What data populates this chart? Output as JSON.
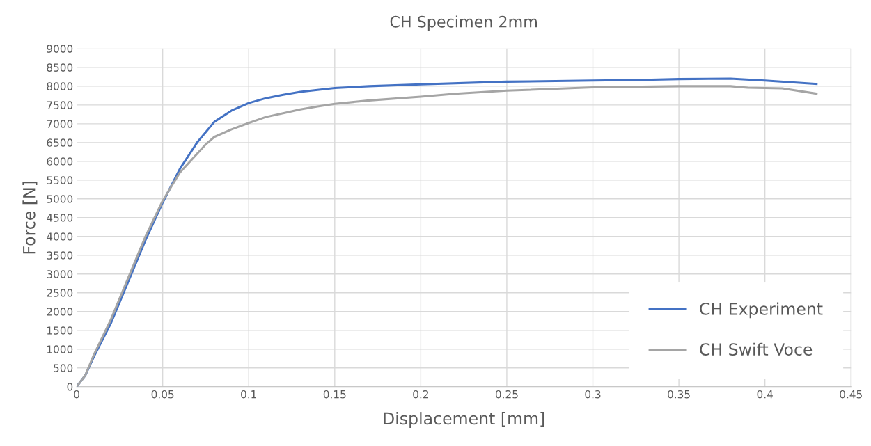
{
  "chart_data": {
    "type": "line",
    "title": "CH Specimen 2mm",
    "xlabel": "Displacement [mm]",
    "ylabel": "Force [N]",
    "xlim": [
      0,
      0.45
    ],
    "xticks": [
      {
        "value": 0,
        "label": "0"
      },
      0.05,
      0.1,
      0.15,
      0.2,
      0.25,
      0.3,
      0.35,
      0.4,
      0.45
    ],
    "ylim": [
      0,
      9000
    ],
    "yticks": [
      0,
      500,
      1000,
      1500,
      2000,
      2500,
      3000,
      3500,
      4000,
      4500,
      5000,
      5500,
      6000,
      6500,
      7000,
      7500,
      8000,
      8500,
      9000
    ],
    "grid": true,
    "legend": "bottom right",
    "marker": "none",
    "line_style": "solid",
    "series": [
      {
        "name": "CH Experiment",
        "color": "#4472c4",
        "x": [
          0,
          0.005,
          0.01,
          0.02,
          0.03,
          0.04,
          0.05,
          0.06,
          0.07,
          0.08,
          0.09,
          0.1,
          0.11,
          0.12,
          0.13,
          0.14,
          0.15,
          0.17,
          0.2,
          0.25,
          0.3,
          0.33,
          0.35,
          0.38,
          0.4,
          0.43
        ],
        "values": [
          0,
          300,
          800,
          1700,
          2800,
          3900,
          4900,
          5800,
          6500,
          7050,
          7350,
          7550,
          7680,
          7770,
          7850,
          7900,
          7950,
          8000,
          8050,
          8120,
          8150,
          8170,
          8190,
          8200,
          8150,
          8060
        ]
      },
      {
        "name": "CH Swift Voce",
        "color": "#a5a5a5",
        "x": [
          0,
          0.005,
          0.01,
          0.02,
          0.03,
          0.04,
          0.05,
          0.06,
          0.07,
          0.075,
          0.08,
          0.09,
          0.1,
          0.11,
          0.12,
          0.13,
          0.14,
          0.15,
          0.17,
          0.2,
          0.22,
          0.25,
          0.3,
          0.35,
          0.38,
          0.39,
          0.41,
          0.43
        ],
        "values": [
          0,
          300,
          850,
          1800,
          2900,
          4000,
          4950,
          5700,
          6200,
          6450,
          6650,
          6850,
          7020,
          7180,
          7280,
          7380,
          7460,
          7530,
          7620,
          7720,
          7800,
          7880,
          7970,
          8000,
          8000,
          7960,
          7940,
          7800
        ]
      }
    ]
  }
}
